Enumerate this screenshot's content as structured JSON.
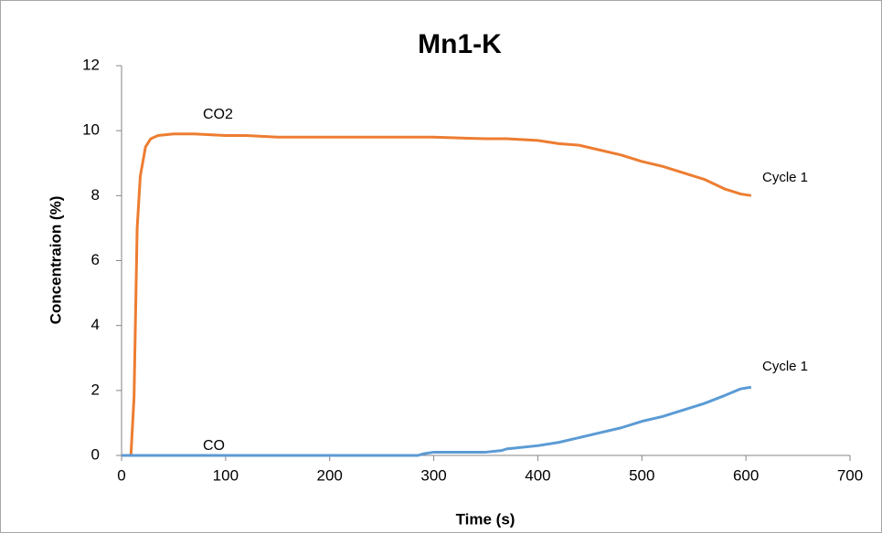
{
  "chart_data": {
    "type": "line",
    "title": "Mn1-K",
    "x_label": "Time (s)",
    "y_label": "Concentraion (%)",
    "x": [
      0,
      9,
      12,
      15,
      18,
      23,
      28,
      35,
      50,
      60,
      70,
      100,
      120,
      150,
      200,
      250,
      285,
      290,
      300,
      350,
      365,
      370,
      400,
      420,
      440,
      460,
      480,
      500,
      520,
      540,
      560,
      580,
      595,
      605
    ],
    "series": [
      {
        "name": "CO2",
        "color": "#ed7d31",
        "values": [
          0,
          0,
          1.8,
          7.0,
          8.6,
          9.5,
          9.75,
          9.85,
          9.9,
          9.9,
          9.9,
          9.85,
          9.85,
          9.8,
          9.8,
          9.8,
          9.8,
          9.8,
          9.8,
          9.75,
          9.75,
          9.75,
          9.7,
          9.6,
          9.55,
          9.4,
          9.25,
          9.05,
          8.9,
          8.7,
          8.5,
          8.2,
          8.05,
          8.0
        ]
      },
      {
        "name": "CO",
        "color": "#5b9bd5",
        "values": [
          0,
          0,
          0,
          0,
          0,
          0,
          0,
          0,
          0,
          0,
          0,
          0,
          0,
          0,
          0,
          0,
          0,
          0.05,
          0.1,
          0.1,
          0.15,
          0.2,
          0.3,
          0.4,
          0.55,
          0.7,
          0.85,
          1.05,
          1.2,
          1.4,
          1.6,
          1.85,
          2.05,
          2.1
        ]
      }
    ],
    "annotations": [
      "CO2",
      "CO",
      "Cycle 1",
      "Cycle 1"
    ],
    "xlim": [
      0,
      700
    ],
    "xticks": [
      0,
      100,
      200,
      300,
      400,
      500,
      600,
      700
    ],
    "ylim": [
      0,
      12
    ],
    "yticks": [
      0,
      2,
      4,
      6,
      8,
      10,
      12
    ],
    "grid": false
  }
}
